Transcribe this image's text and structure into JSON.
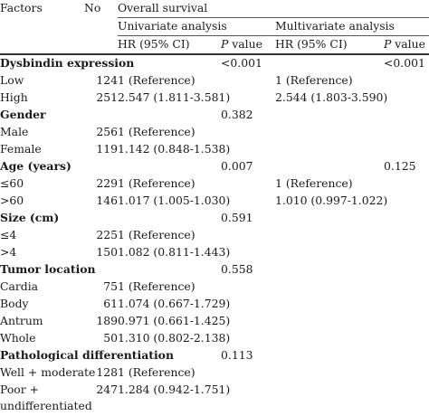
{
  "header": {
    "factors": "Factors",
    "no": "No",
    "overall": "Overall survival",
    "univariate": "Univariate analysis",
    "multivariate": "Multivariate analysis",
    "hr": "HR (95% CI)",
    "p_italic": "P",
    "p_rest": " value"
  },
  "rows": [
    {
      "factor": "Dysbindin expression",
      "section": true,
      "no": "",
      "u_hr": "",
      "u_p": "<0.001",
      "m_hr": "",
      "m_p": "<0.001"
    },
    {
      "factor": "Low",
      "no": "124",
      "u_hr": "1 (Reference)",
      "u_p": "",
      "m_hr": "1 (Reference)",
      "m_p": ""
    },
    {
      "factor": "High",
      "no": "251",
      "u_hr": "2.547 (1.811-3.581)",
      "u_p": "",
      "m_hr": "2.544 (1.803-3.590)",
      "m_p": ""
    },
    {
      "factor": "Gender",
      "section": true,
      "no": "",
      "u_hr": "",
      "u_p": "0.382",
      "m_hr": "",
      "m_p": ""
    },
    {
      "factor": "Male",
      "no": "256",
      "u_hr": "1 (Reference)",
      "u_p": "",
      "m_hr": "",
      "m_p": ""
    },
    {
      "factor": "Female",
      "no": "119",
      "u_hr": "1.142 (0.848-1.538)",
      "u_p": "",
      "m_hr": "",
      "m_p": ""
    },
    {
      "factor": "Age (years)",
      "section": true,
      "no": "",
      "u_hr": "",
      "u_p": "0.007",
      "m_hr": "",
      "m_p": "0.125"
    },
    {
      "factor": "≤60",
      "no": "229",
      "u_hr": "1 (Reference)",
      "u_p": "",
      "m_hr": "1 (Reference)",
      "m_p": ""
    },
    {
      "factor": ">60",
      "no": "146",
      "u_hr": "1.017 (1.005-1.030)",
      "u_p": "",
      "m_hr": "1.010 (0.997-1.022)",
      "m_p": ""
    },
    {
      "factor": "Size (cm)",
      "section": true,
      "no": "",
      "u_hr": "",
      "u_p": "0.591",
      "m_hr": "",
      "m_p": ""
    },
    {
      "factor": "≤4",
      "no": "225",
      "u_hr": "1 (Reference)",
      "u_p": "",
      "m_hr": "",
      "m_p": ""
    },
    {
      "factor": ">4",
      "no": "150",
      "u_hr": "1.082 (0.811-1.443)",
      "u_p": "",
      "m_hr": "",
      "m_p": ""
    },
    {
      "factor": "Tumor location",
      "section": true,
      "no": "",
      "u_hr": "",
      "u_p": "0.558",
      "m_hr": "",
      "m_p": ""
    },
    {
      "factor": "Cardia",
      "no": "75",
      "u_hr": "1 (Reference)",
      "u_p": "",
      "m_hr": "",
      "m_p": ""
    },
    {
      "factor": "Body",
      "no": "61",
      "u_hr": "1.074 (0.667-1.729)",
      "u_p": "",
      "m_hr": "",
      "m_p": ""
    },
    {
      "factor": "Antrum",
      "no": "189",
      "u_hr": "0.971 (0.661-1.425)",
      "u_p": "",
      "m_hr": "",
      "m_p": ""
    },
    {
      "factor": "Whole",
      "no": "50",
      "u_hr": "1.310 (0.802-2.138)",
      "u_p": "",
      "m_hr": "",
      "m_p": ""
    },
    {
      "factor": "Pathological differentiation",
      "section": true,
      "no": "",
      "u_hr": "",
      "u_p": "0.113",
      "m_hr": "",
      "m_p": ""
    },
    {
      "factor": "Well + moderate",
      "no": "128",
      "u_hr": "1 (Reference)",
      "u_p": "",
      "m_hr": "",
      "m_p": ""
    },
    {
      "factor": "Poor + undifferentiated",
      "wrap": true,
      "no": "247",
      "u_hr": "1.284 (0.942-1.751)",
      "u_p": "",
      "m_hr": "",
      "m_p": ""
    }
  ]
}
